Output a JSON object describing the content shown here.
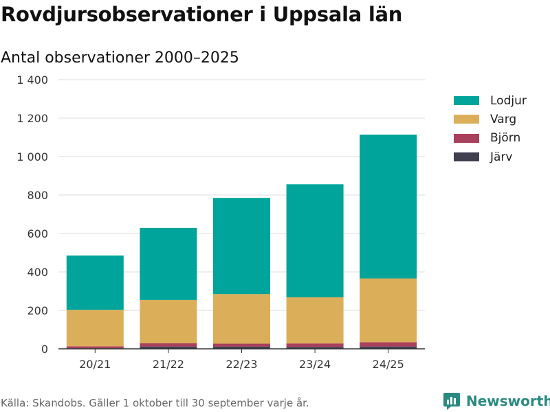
{
  "header": {
    "title": "Rovdjursobservationer i Uppsala län",
    "subtitle": "Antal observationer 2000–2025"
  },
  "footer": {
    "source": "Källa: Skandobs. Gäller 1 oktober till 30 september varje år.",
    "brand": "Newsworthy"
  },
  "colors": {
    "Lodjur": "#00a49a",
    "Varg": "#dbae5a",
    "Björn": "#a9405c",
    "Järv": "#3f3f4f",
    "grid": "#dddddd",
    "axis": "#333333",
    "brand": "#2a8a80"
  },
  "chart_data": {
    "type": "bar",
    "stacked": true,
    "title": "Rovdjursobservationer i Uppsala län",
    "subtitle": "Antal observationer 2000–2025",
    "xlabel": "",
    "ylabel": "",
    "ylim": [
      0,
      1400
    ],
    "yticks": [
      0,
      200,
      400,
      600,
      800,
      1000,
      1200,
      1400
    ],
    "ytick_labels": [
      "0",
      "200",
      "400",
      "600",
      "800",
      "1 000",
      "1 200",
      "1 400"
    ],
    "grid": true,
    "legend_position": "right",
    "categories": [
      "20/21",
      "21/22",
      "22/23",
      "23/24",
      "24/25"
    ],
    "series": [
      {
        "name": "Järv",
        "values": [
          3,
          12,
          12,
          10,
          12
        ]
      },
      {
        "name": "Björn",
        "values": [
          10,
          17,
          15,
          18,
          22
        ]
      },
      {
        "name": "Varg",
        "values": [
          190,
          225,
          258,
          240,
          332
        ]
      },
      {
        "name": "Lodjur",
        "values": [
          282,
          375,
          500,
          588,
          748
        ]
      }
    ],
    "legend": [
      "Lodjur",
      "Varg",
      "Björn",
      "Järv"
    ]
  }
}
